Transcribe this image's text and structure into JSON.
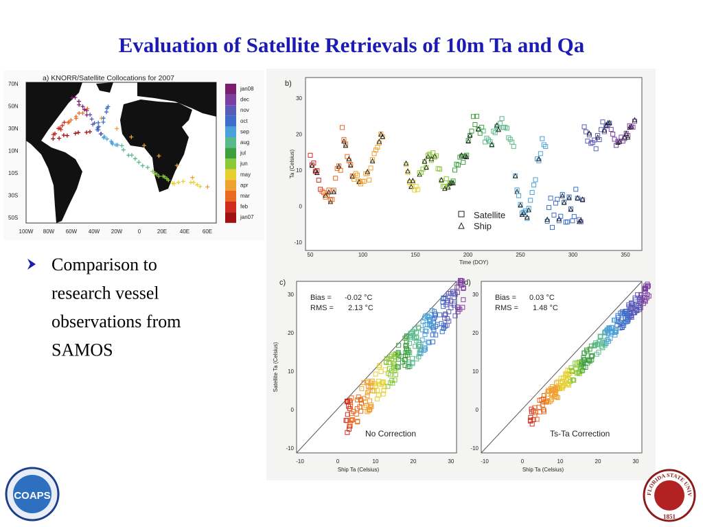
{
  "title": "Evaluation of Satellite Retrievals of 10m Ta and Qa",
  "bullets": [
    "Comparison to research vessel observations from SAMOS"
  ],
  "figure": {
    "panel_a": {
      "label": "a) KNORR/Satellite Collocations for 2007",
      "lat_labels": [
        "70N",
        "50N",
        "30N",
        "10N",
        "10S",
        "30S",
        "50S"
      ],
      "lon_labels": [
        "100W",
        "80W",
        "60W",
        "40W",
        "20W",
        "0",
        "20E",
        "40E",
        "60E"
      ],
      "months": [
        "jan08",
        "dec",
        "nov",
        "oct",
        "sep",
        "aug",
        "jul",
        "jun",
        "may",
        "apr",
        "mar",
        "feb",
        "jan07"
      ]
    },
    "panel_b": {
      "label": "b)",
      "y_axis": "Ta (Celsius)",
      "x_axis": "Time (DOY)",
      "yticks": [
        "30",
        "20",
        "10",
        "0",
        "-10"
      ],
      "xticks": [
        "50",
        "100",
        "150",
        "200",
        "250",
        "300",
        "350"
      ],
      "legend": [
        "Satellite",
        "Ship"
      ]
    },
    "panel_c": {
      "label": "c)",
      "bias_label": "Bias =",
      "bias_value": "-0.02 °C",
      "rms_label": "RMS =",
      "rms_value": "2.13 °C",
      "note": "No Correction",
      "y_axis": "Satellite Ta (Celsius)",
      "x_axis": "Ship Ta (Celsius)",
      "yticks": [
        "30",
        "20",
        "10",
        "0",
        "-10"
      ],
      "xticks": [
        "-10",
        "0",
        "10",
        "20",
        "30"
      ]
    },
    "panel_d": {
      "label": "d)",
      "bias_label": "Bias =",
      "bias_value": "0.03 °C",
      "rms_label": "RMS =",
      "rms_value": "1.48 °C",
      "note": "Ts-Ta Correction",
      "x_axis": "Ship Ta (Celsius)",
      "yticks": [
        "30",
        "20",
        "10",
        "0",
        "-10"
      ],
      "xticks": [
        "-10",
        "0",
        "10",
        "20",
        "30"
      ]
    }
  },
  "logos": {
    "coaps": "COAPS",
    "fsu_name": "FLORIDA STATE UNIVERSITY",
    "fsu_year": "1851"
  }
}
